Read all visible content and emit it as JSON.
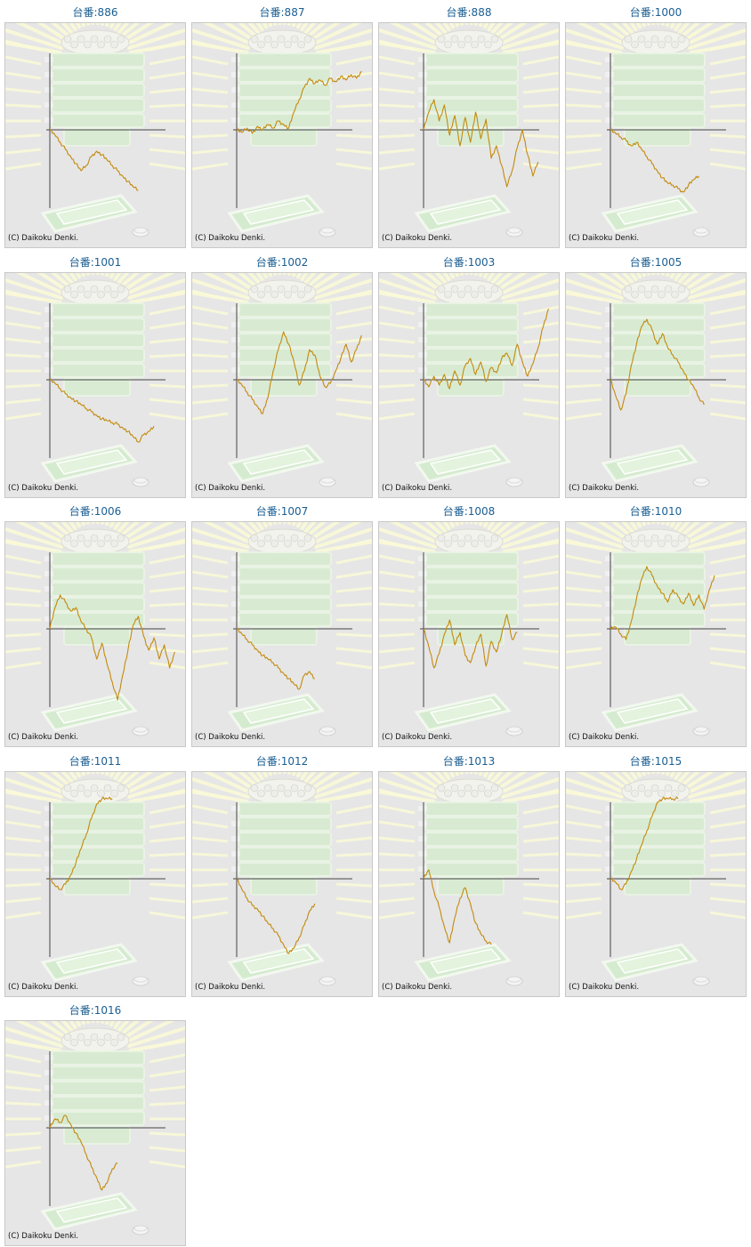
{
  "copyright": "(C) Daikoku Denki.",
  "colors": {
    "title": "#1a5e92",
    "line": "#c38a0c",
    "axis": "#444444",
    "background": "#e6e6e6"
  },
  "machines": [
    {
      "title": "台番:886",
      "y": [
        0,
        -6,
        -14,
        -22,
        -30,
        -38,
        -46,
        -40,
        -30,
        -24,
        -28,
        -34,
        -40,
        -46,
        -52,
        -58,
        -64,
        -68
      ]
    },
    {
      "title": "台番:887",
      "y": [
        0,
        -3,
        2,
        -4,
        4,
        0,
        6,
        2,
        10,
        6,
        2,
        20,
        34,
        48,
        58,
        52,
        56,
        50,
        58,
        54,
        60,
        56,
        62,
        58,
        66
      ]
    },
    {
      "title": "台番:888",
      "y": [
        0,
        20,
        34,
        10,
        28,
        -6,
        16,
        -18,
        14,
        -14,
        20,
        -10,
        12,
        -32,
        -18,
        -40,
        -64,
        -46,
        -20,
        0,
        -28,
        -52,
        -36
      ]
    },
    {
      "title": "台番:1000",
      "y": [
        0,
        -4,
        -8,
        -12,
        -18,
        -14,
        -22,
        -30,
        -38,
        -46,
        -54,
        -60,
        -62,
        -66,
        -70,
        -62,
        -56,
        -52
      ]
    },
    {
      "title": "台番:1001",
      "y": [
        0,
        -4,
        -10,
        -16,
        -20,
        -24,
        -28,
        -32,
        -36,
        -40,
        -44,
        -46,
        -48,
        -50,
        -54,
        -58,
        -64,
        -70,
        -62,
        -58,
        -52
      ]
    },
    {
      "title": "台番:1002",
      "y": [
        0,
        -6,
        -14,
        -22,
        -30,
        -38,
        -20,
        10,
        34,
        54,
        40,
        20,
        -6,
        10,
        34,
        28,
        4,
        -8,
        -4,
        10,
        24,
        40,
        20,
        34,
        50
      ]
    },
    {
      "title": "台番:1003",
      "y": [
        0,
        -8,
        4,
        -6,
        6,
        -10,
        10,
        -6,
        16,
        24,
        6,
        20,
        -2,
        14,
        8,
        24,
        30,
        16,
        40,
        20,
        4,
        18,
        36,
        60,
        80
      ]
    },
    {
      "title": "台番:1005",
      "y": [
        0,
        -18,
        -34,
        -16,
        16,
        40,
        60,
        68,
        56,
        40,
        52,
        36,
        28,
        20,
        10,
        0,
        -8,
        -20,
        -28
      ]
    },
    {
      "title": "台番:1006",
      "y": [
        0,
        24,
        38,
        30,
        20,
        24,
        8,
        0,
        -10,
        -34,
        -16,
        -40,
        -60,
        -80,
        -52,
        -24,
        4,
        14,
        -8,
        -24,
        -10,
        -34,
        -18,
        -44,
        -26
      ]
    },
    {
      "title": "台番:1007",
      "y": [
        0,
        -6,
        -12,
        -18,
        -24,
        -30,
        -34,
        -38,
        -44,
        -50,
        -56,
        -62,
        -68,
        -52,
        -48,
        -56
      ]
    },
    {
      "title": "台番:1008",
      "y": [
        0,
        -20,
        -44,
        -28,
        -6,
        10,
        -18,
        -4,
        -30,
        -38,
        -20,
        -6,
        -42,
        -14,
        -26,
        -6,
        16,
        -12,
        -4
      ]
    },
    {
      "title": "台番:1010",
      "y": [
        0,
        2,
        -6,
        -12,
        8,
        34,
        56,
        70,
        60,
        48,
        40,
        30,
        44,
        36,
        28,
        40,
        26,
        38,
        22,
        44,
        60
      ]
    },
    {
      "title": "台番:1011",
      "y": [
        0,
        -8,
        -12,
        -6,
        4,
        18,
        34,
        50,
        68,
        84,
        100,
        120,
        140
      ]
    },
    {
      "title": "台番:1012",
      "y": [
        0,
        -12,
        -22,
        -30,
        -34,
        -42,
        -50,
        -56,
        -64,
        -74,
        -84,
        -78,
        -66,
        -52,
        -36,
        -28
      ]
    },
    {
      "title": "台番:1013",
      "y": [
        0,
        10,
        -14,
        -32,
        -54,
        -72,
        -44,
        -22,
        -10,
        -28,
        -50,
        -62,
        -70,
        -74
      ]
    },
    {
      "title": "台番:1015",
      "y": [
        0,
        -4,
        -12,
        -6,
        8,
        22,
        38,
        54,
        70,
        86,
        100,
        116,
        134,
        150
      ]
    },
    {
      "title": "台番:1016",
      "y": [
        0,
        10,
        6,
        14,
        4,
        -6,
        -16,
        -30,
        -44,
        -56,
        -70,
        -62,
        -46,
        -40
      ]
    }
  ]
}
